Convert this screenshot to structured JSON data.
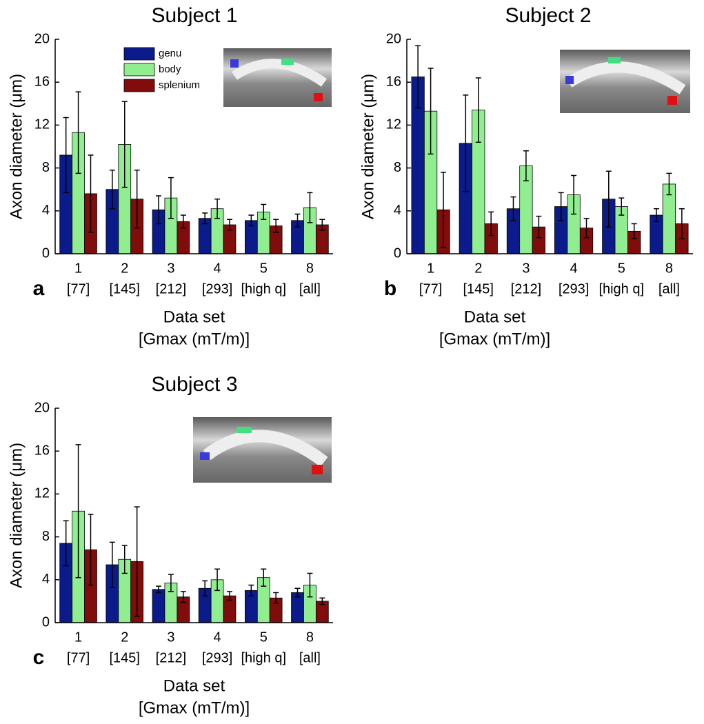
{
  "chart_data": [
    {
      "type": "bar",
      "title": "Subject 1",
      "panel": "a",
      "ylabel": "Axon diameter (μm)",
      "xlabel": [
        "Data set",
        "[Gmax (mT/m)]"
      ],
      "categories": [
        "1",
        "2",
        "3",
        "4",
        "5",
        "8"
      ],
      "category_sublabels": [
        "[77]",
        "[145]",
        "[212]",
        "[293]",
        "[high q]",
        "[all]"
      ],
      "ylim": [
        0,
        20
      ],
      "yticks": [
        0,
        4,
        8,
        12,
        16,
        20
      ],
      "legend": true,
      "series": [
        {
          "name": "genu",
          "color": "#0b1b8c",
          "values": [
            9.2,
            6.0,
            4.1,
            3.3,
            3.1,
            3.1
          ],
          "errors": [
            3.5,
            1.8,
            1.3,
            0.5,
            0.5,
            0.6
          ]
        },
        {
          "name": "body",
          "color": "#90ee90",
          "values": [
            11.3,
            10.2,
            5.2,
            4.2,
            3.9,
            4.3
          ],
          "errors": [
            3.8,
            4.0,
            1.9,
            0.9,
            0.7,
            1.4
          ]
        },
        {
          "name": "splenium",
          "color": "#800c0c",
          "values": [
            5.6,
            5.1,
            3.0,
            2.7,
            2.6,
            2.7
          ],
          "errors": [
            3.6,
            2.7,
            0.6,
            0.5,
            0.6,
            0.5
          ]
        }
      ]
    },
    {
      "type": "bar",
      "title": "Subject 2",
      "panel": "b",
      "ylabel": "Axon diameter (μm)",
      "xlabel": [
        "Data set",
        "[Gmax (mT/m)]"
      ],
      "categories": [
        "1",
        "2",
        "3",
        "4",
        "5",
        "8"
      ],
      "category_sublabels": [
        "[77]",
        "[145]",
        "[212]",
        "[293]",
        "[high q]",
        "[all]"
      ],
      "ylim": [
        0,
        20
      ],
      "yticks": [
        0,
        4,
        8,
        12,
        16,
        20
      ],
      "legend": false,
      "series": [
        {
          "color": "#0b1b8c",
          "values": [
            16.5,
            10.3,
            4.2,
            4.4,
            5.1,
            3.6
          ],
          "errors": [
            2.9,
            4.5,
            1.1,
            1.3,
            2.6,
            0.6
          ]
        },
        {
          "color": "#90ee90",
          "values": [
            13.3,
            13.4,
            8.2,
            5.5,
            4.4,
            6.5
          ],
          "errors": [
            4.0,
            3.0,
            1.4,
            1.8,
            0.8,
            1.0
          ]
        },
        {
          "color": "#800c0c",
          "values": [
            4.1,
            2.8,
            2.5,
            2.4,
            2.1,
            2.8
          ],
          "errors": [
            3.5,
            1.1,
            1.0,
            0.9,
            0.7,
            1.4
          ]
        }
      ]
    },
    {
      "type": "bar",
      "title": "Subject 3",
      "panel": "c",
      "ylabel": "Axon diameter (μm)",
      "xlabel": [
        "Data set",
        "[Gmax (mT/m)]"
      ],
      "categories": [
        "1",
        "2",
        "3",
        "4",
        "5",
        "8"
      ],
      "category_sublabels": [
        "[77]",
        "[145]",
        "[212]",
        "[293]",
        "[high q]",
        "[all]"
      ],
      "ylim": [
        0,
        20
      ],
      "yticks": [
        0,
        4,
        8,
        12,
        16,
        20
      ],
      "legend": false,
      "series": [
        {
          "color": "#0b1b8c",
          "values": [
            7.4,
            5.4,
            3.1,
            3.2,
            3.0,
            2.8
          ],
          "errors": [
            2.1,
            2.1,
            0.3,
            0.7,
            0.5,
            0.4
          ]
        },
        {
          "color": "#90ee90",
          "values": [
            10.4,
            5.9,
            3.7,
            4.0,
            4.2,
            3.5
          ],
          "errors": [
            6.2,
            1.3,
            0.8,
            1.0,
            0.8,
            1.1
          ]
        },
        {
          "color": "#800c0c",
          "values": [
            6.8,
            5.7,
            2.4,
            2.5,
            2.3,
            2.0
          ],
          "errors": [
            3.3,
            5.1,
            0.5,
            0.4,
            0.5,
            0.3
          ]
        }
      ]
    }
  ]
}
